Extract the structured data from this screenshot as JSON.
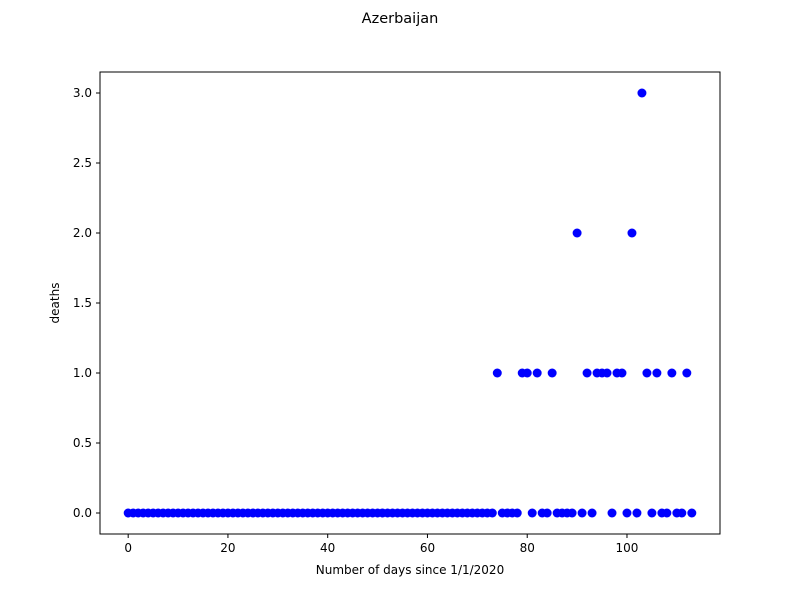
{
  "chart_data": {
    "type": "scatter",
    "title": "Azerbaijan",
    "xlabel": "Number of days since 1/1/2020",
    "ylabel": "deaths",
    "xlim": [
      -5.65,
      118.65
    ],
    "ylim": [
      -0.15,
      3.15
    ],
    "xticks": [
      0,
      20,
      40,
      60,
      80,
      100
    ],
    "yticks": [
      0.0,
      0.5,
      1.0,
      1.5,
      2.0,
      2.5,
      3.0
    ],
    "ytick_labels": [
      "0.0",
      "0.5",
      "1.0",
      "1.5",
      "2.0",
      "2.5",
      "3.0"
    ],
    "marker_color": "#0000ff",
    "grid": false,
    "series": [
      {
        "x": [
          0,
          1,
          2,
          3,
          4,
          5,
          6,
          7,
          8,
          9,
          10,
          11,
          12,
          13,
          14,
          15,
          16,
          17,
          18,
          19,
          20,
          21,
          22,
          23,
          24,
          25,
          26,
          27,
          28,
          29,
          30,
          31,
          32,
          33,
          34,
          35,
          36,
          37,
          38,
          39,
          40,
          41,
          42,
          43,
          44,
          45,
          46,
          47,
          48,
          49,
          50,
          51,
          52,
          53,
          54,
          55,
          56,
          57,
          58,
          59,
          60,
          61,
          62,
          63,
          64,
          65,
          66,
          67,
          68,
          69,
          70,
          71,
          72,
          73,
          74,
          75,
          76,
          77,
          78,
          79,
          80,
          81,
          82,
          83,
          84,
          85,
          86,
          87,
          88,
          89,
          90,
          91,
          92,
          93,
          94,
          95,
          96,
          97,
          98,
          99,
          100,
          101,
          102,
          103,
          104,
          105,
          106,
          107,
          108,
          109,
          110,
          111,
          112,
          113
        ],
        "y": [
          0,
          0,
          0,
          0,
          0,
          0,
          0,
          0,
          0,
          0,
          0,
          0,
          0,
          0,
          0,
          0,
          0,
          0,
          0,
          0,
          0,
          0,
          0,
          0,
          0,
          0,
          0,
          0,
          0,
          0,
          0,
          0,
          0,
          0,
          0,
          0,
          0,
          0,
          0,
          0,
          0,
          0,
          0,
          0,
          0,
          0,
          0,
          0,
          0,
          0,
          0,
          0,
          0,
          0,
          0,
          0,
          0,
          0,
          0,
          0,
          0,
          0,
          0,
          0,
          0,
          0,
          0,
          0,
          0,
          0,
          0,
          0,
          0,
          0,
          1,
          0,
          0,
          0,
          0,
          1,
          1,
          0,
          1,
          0,
          0,
          1,
          0,
          0,
          0,
          0,
          2,
          0,
          1,
          0,
          1,
          1,
          1,
          0,
          1,
          1,
          0,
          2,
          0,
          3,
          1,
          0,
          1,
          0,
          0,
          1,
          0,
          0,
          1,
          0
        ]
      }
    ]
  }
}
